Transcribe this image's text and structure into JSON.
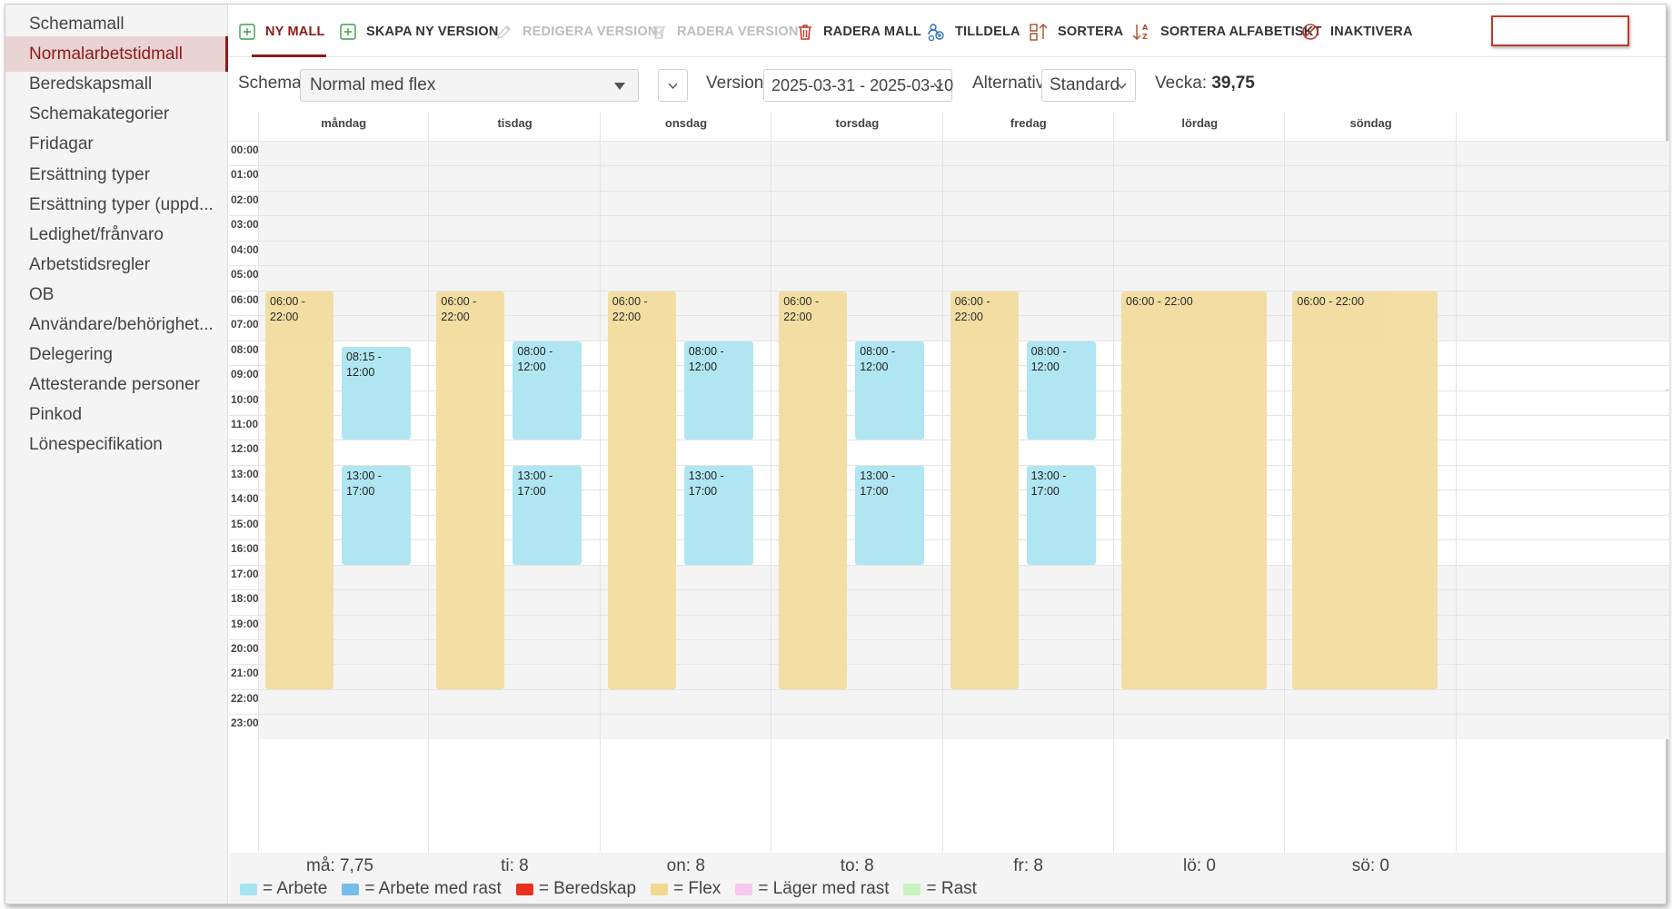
{
  "sidebar": {
    "items": [
      {
        "label": "Schemamall",
        "active": false
      },
      {
        "label": "Normalarbetstidmall",
        "active": true
      },
      {
        "label": "Beredskapsmall",
        "active": false
      },
      {
        "label": "Schemakategorier",
        "active": false
      },
      {
        "label": "Fridagar",
        "active": false
      },
      {
        "label": "Ersättning typer",
        "active": false
      },
      {
        "label": "Ersättning typer (uppd...",
        "active": false
      },
      {
        "label": "Ledighet/frånvaro",
        "active": false
      },
      {
        "label": "Arbetstidsregler",
        "active": false
      },
      {
        "label": "OB",
        "active": false
      },
      {
        "label": "Användare/behörighet...",
        "active": false
      },
      {
        "label": "Delegering",
        "active": false
      },
      {
        "label": "Attesterande personer",
        "active": false
      },
      {
        "label": "Pinkod",
        "active": false
      },
      {
        "label": "Lönespecifikation",
        "active": false
      }
    ]
  },
  "toolbar": {
    "buttons": [
      {
        "label": "NY MALL",
        "icon": "plus-square-icon",
        "state": "primary"
      },
      {
        "label": "SKAPA NY VERSION",
        "icon": "plus-square-icon",
        "state": "normal"
      },
      {
        "label": "REDIGERA VERSION",
        "icon": "pencil-icon",
        "state": "disabled"
      },
      {
        "label": "RADERA VERSION",
        "icon": "trash-mesh-icon",
        "state": "disabled"
      },
      {
        "label": "RADERA MALL",
        "icon": "trash-icon",
        "state": "normal"
      },
      {
        "label": "TILLDELA",
        "icon": "assign-users-icon",
        "state": "normal"
      },
      {
        "label": "SORTERA",
        "icon": "sort-icon",
        "state": "normal"
      },
      {
        "label": "SORTERA ALFABETISKT",
        "icon": "sort-alpha-icon",
        "state": "normal"
      },
      {
        "label": "INAKTIVERA",
        "icon": "ban-icon",
        "state": "highlighted"
      }
    ]
  },
  "filters": {
    "schema_label": "Schema:",
    "schema_value": "Normal med flex",
    "version_label": "Version",
    "version_value": "2025-03-31 - 2025-03-10",
    "alternative_label": "Alternativ",
    "alternative_value": "Standard",
    "week_label": "Vecka:",
    "week_value": "39,75"
  },
  "calendar": {
    "days": [
      "måndag",
      "tisdag",
      "onsdag",
      "torsdag",
      "fredag",
      "lördag",
      "söndag"
    ],
    "hours": [
      "00:00",
      "01:00",
      "02:00",
      "03:00",
      "04:00",
      "05:00",
      "06:00",
      "07:00",
      "08:00",
      "09:00",
      "10:00",
      "11:00",
      "12:00",
      "13:00",
      "14:00",
      "15:00",
      "16:00",
      "17:00",
      "18:00",
      "19:00",
      "20:00",
      "21:00",
      "22:00",
      "23:00"
    ],
    "normal_hours_start": 8,
    "normal_hours_end": 17,
    "blocks": [
      {
        "day": 0,
        "type": "flex",
        "start": 6,
        "end": 22,
        "label": "06:00 -\n22:00"
      },
      {
        "day": 0,
        "type": "work",
        "start": 8.25,
        "end": 12,
        "label": "08:15 -\n12:00"
      },
      {
        "day": 0,
        "type": "work",
        "start": 13,
        "end": 17,
        "label": "13:00 -\n17:00"
      },
      {
        "day": 1,
        "type": "flex",
        "start": 6,
        "end": 22,
        "label": "06:00 -\n22:00"
      },
      {
        "day": 1,
        "type": "work",
        "start": 8,
        "end": 12,
        "label": "08:00 -\n12:00"
      },
      {
        "day": 1,
        "type": "work",
        "start": 13,
        "end": 17,
        "label": "13:00 -\n17:00"
      },
      {
        "day": 2,
        "type": "flex",
        "start": 6,
        "end": 22,
        "label": "06:00 -\n22:00"
      },
      {
        "day": 2,
        "type": "work",
        "start": 8,
        "end": 12,
        "label": "08:00 -\n12:00"
      },
      {
        "day": 2,
        "type": "work",
        "start": 13,
        "end": 17,
        "label": "13:00 -\n17:00"
      },
      {
        "day": 3,
        "type": "flex",
        "start": 6,
        "end": 22,
        "label": "06:00 -\n22:00"
      },
      {
        "day": 3,
        "type": "work",
        "start": 8,
        "end": 12,
        "label": "08:00 -\n12:00"
      },
      {
        "day": 3,
        "type": "work",
        "start": 13,
        "end": 17,
        "label": "13:00 -\n17:00"
      },
      {
        "day": 4,
        "type": "flex",
        "start": 6,
        "end": 22,
        "label": "06:00 -\n22:00"
      },
      {
        "day": 4,
        "type": "work",
        "start": 8,
        "end": 12,
        "label": "08:00 -\n12:00"
      },
      {
        "day": 4,
        "type": "work",
        "start": 13,
        "end": 17,
        "label": "13:00 -\n17:00"
      },
      {
        "day": 5,
        "type": "flex-wide",
        "start": 6,
        "end": 22,
        "label": "06:00 - 22:00"
      },
      {
        "day": 6,
        "type": "flex-wide",
        "start": 6,
        "end": 22,
        "label": "06:00 - 22:00"
      }
    ]
  },
  "footer": {
    "day_sums": [
      "må: 7,75",
      "ti: 8",
      "on: 8",
      "to: 8",
      "fr: 8",
      "lö: 0",
      "sö: 0"
    ],
    "legend": [
      {
        "label": "= Arbete",
        "color": "#a8e4f0"
      },
      {
        "label": "= Arbete med rast",
        "color": "#78bcea"
      },
      {
        "label": "= Beredskap",
        "color": "#e8321e"
      },
      {
        "label": "= Flex",
        "color": "#f2d88e"
      },
      {
        "label": "= Läger med rast",
        "color": "#f6c8f0"
      },
      {
        "label": "= Rast",
        "color": "#c8f2c0"
      }
    ]
  },
  "colors": {
    "accent": "#8c1a1a",
    "active_bg": "#ead3d3",
    "flex": "#f2dc9e",
    "work": "#b0e6f2",
    "highlight_border": "#c0392b"
  }
}
